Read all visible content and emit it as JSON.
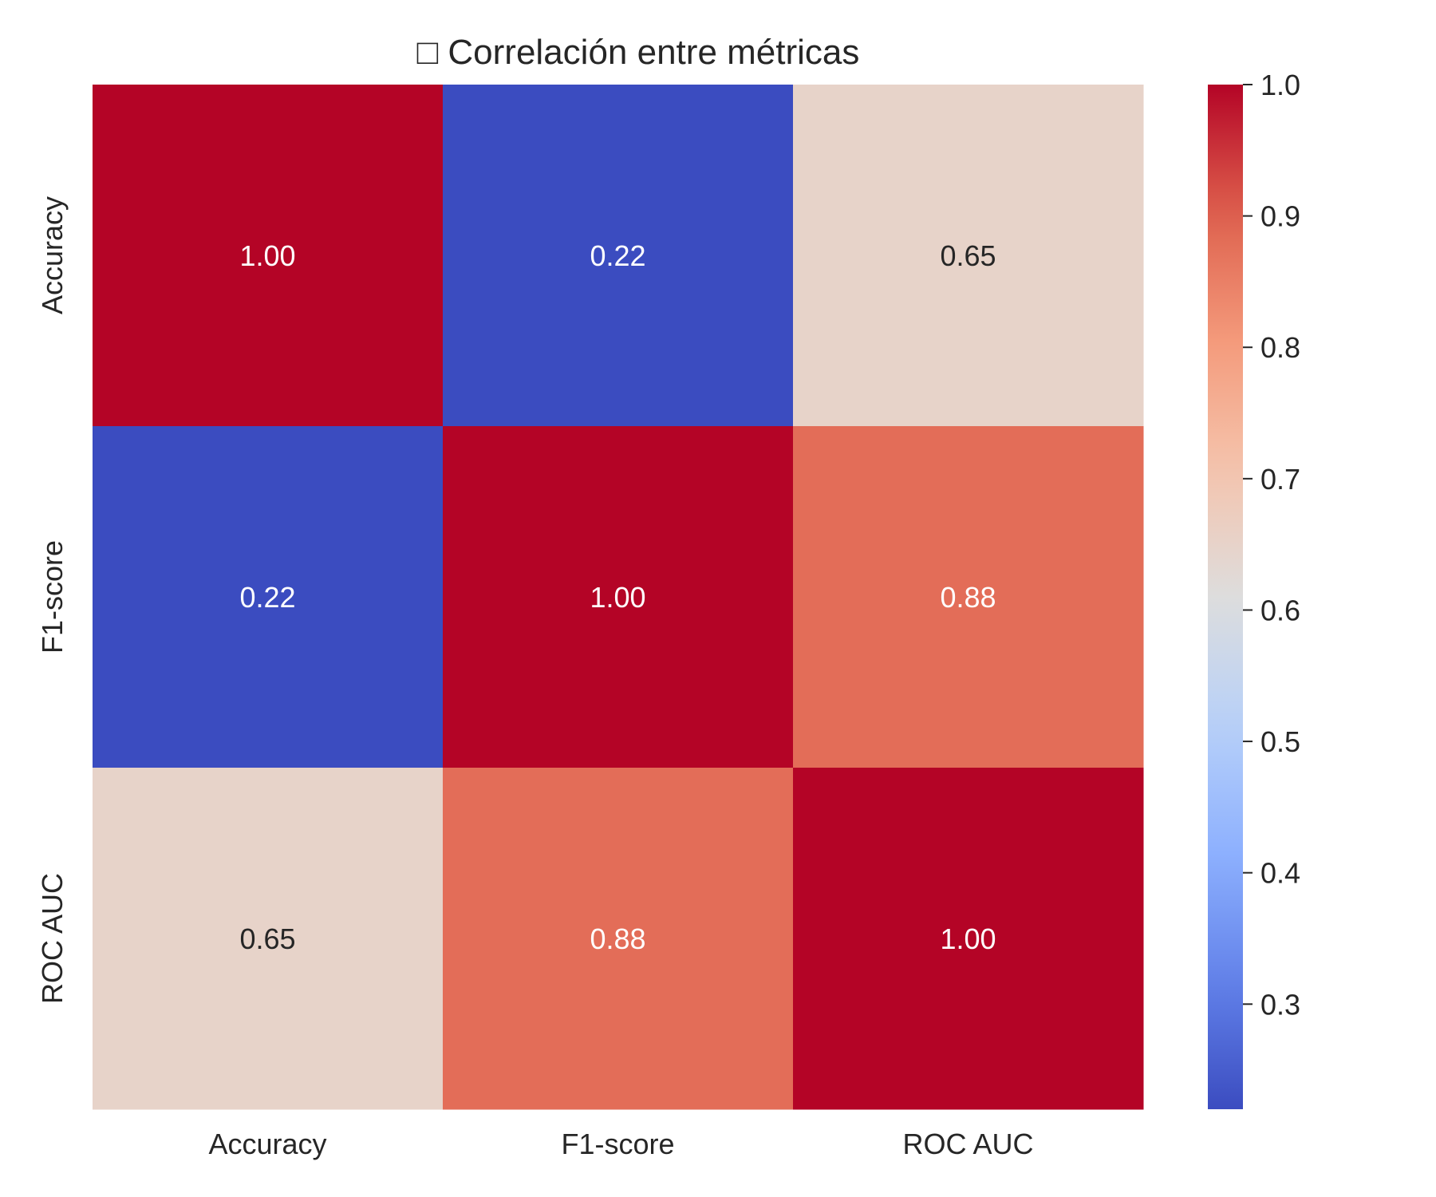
{
  "chart_data": {
    "type": "heatmap",
    "title": "□ Correlación entre métricas",
    "x_labels": [
      "Accuracy",
      "F1-score",
      "ROC AUC"
    ],
    "y_labels": [
      "Accuracy",
      "F1-score",
      "ROC AUC"
    ],
    "values": [
      [
        1.0,
        0.22,
        0.65
      ],
      [
        0.22,
        1.0,
        0.88
      ],
      [
        0.65,
        0.88,
        1.0
      ]
    ],
    "annotations": [
      [
        "1.00",
        "0.22",
        "0.65"
      ],
      [
        "0.22",
        "1.00",
        "0.88"
      ],
      [
        "0.65",
        "0.88",
        "1.00"
      ]
    ],
    "colormap": "coolwarm",
    "colorbar": {
      "range": [
        0.22,
        1.0
      ],
      "ticks": [
        0.3,
        0.4,
        0.5,
        0.6,
        0.7,
        0.8,
        0.9,
        1.0
      ],
      "tick_labels": [
        "0.3",
        "0.4",
        "0.5",
        "0.6",
        "0.7",
        "0.8",
        "0.9",
        "1.0"
      ]
    },
    "grid": false
  }
}
